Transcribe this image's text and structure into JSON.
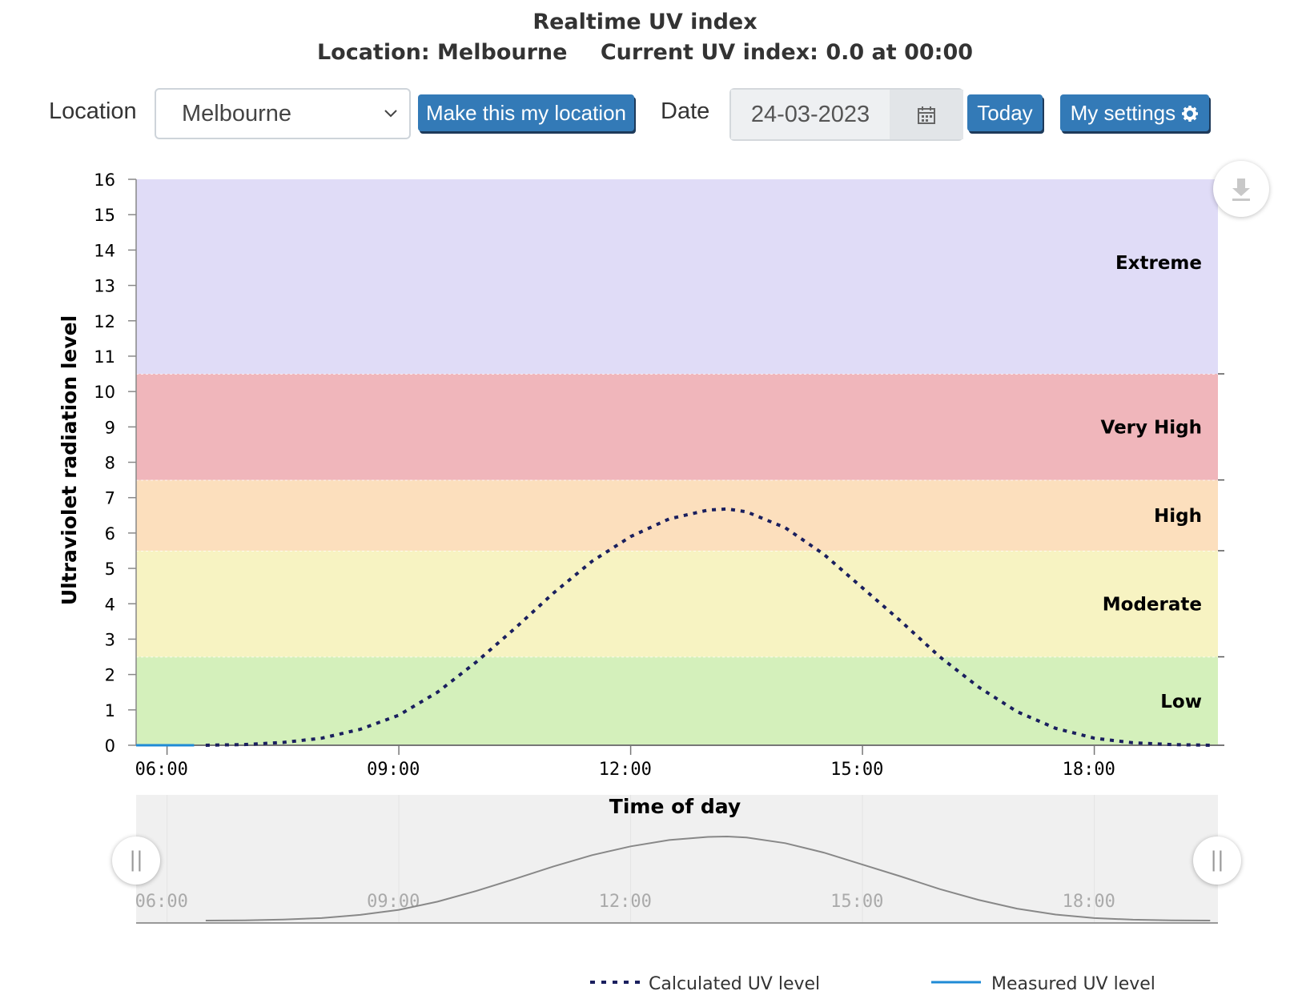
{
  "header": {
    "title": "Realtime UV index",
    "location_text": "Location: Melbourne",
    "current_text": "Current UV index: 0.0 at 00:00"
  },
  "controls": {
    "location_label": "Location",
    "location_value": "Melbourne",
    "make_location_button": "Make this my location",
    "date_label": "Date",
    "date_value": "24-03-2023",
    "today_button": "Today",
    "settings_button": "My settings"
  },
  "icons": {
    "select": "chevron-down-icon",
    "date": "calendar-icon",
    "settings": "gear-icon",
    "export": "download-icon",
    "navigator_handles": "drag-handle-icon"
  },
  "chart_data": {
    "type": "line",
    "title": "",
    "xlabel": "Time of day",
    "ylabel": "Ultraviolet radiation level",
    "x_ticks": [
      "06:00",
      "09:00",
      "12:00",
      "15:00",
      "18:00"
    ],
    "xlim_hours": [
      5.6,
      19.6
    ],
    "ylim": [
      0,
      16
    ],
    "y_ticks": [
      0,
      1,
      2,
      3,
      4,
      5,
      6,
      7,
      8,
      9,
      10,
      11,
      12,
      13,
      14,
      15,
      16
    ],
    "grid": false,
    "legend_position": "bottom-right",
    "bands": [
      {
        "name": "Low",
        "from": 0,
        "to": 2.5,
        "color": "#d4f0bb"
      },
      {
        "name": "Moderate",
        "from": 2.5,
        "to": 5.5,
        "color": "#f7f3c2"
      },
      {
        "name": "High",
        "from": 5.5,
        "to": 7.5,
        "color": "#fcdfbd"
      },
      {
        "name": "Very High",
        "from": 7.5,
        "to": 10.5,
        "color": "#f0b6bb"
      },
      {
        "name": "Extreme",
        "from": 10.5,
        "to": 16,
        "color": "#e0dcf7"
      }
    ],
    "series": [
      {
        "name": "Calculated UV level",
        "color": "#1a1f5e",
        "style": "dotted",
        "x_hours": [
          6.5,
          7.0,
          7.5,
          8.0,
          8.5,
          9.0,
          9.5,
          10.0,
          10.5,
          11.0,
          11.5,
          12.0,
          12.5,
          13.0,
          13.25,
          13.5,
          14.0,
          14.5,
          15.0,
          15.5,
          16.0,
          16.5,
          17.0,
          17.5,
          18.0,
          18.5,
          19.0,
          19.5
        ],
        "values": [
          0.0,
          0.02,
          0.08,
          0.2,
          0.45,
          0.85,
          1.5,
          2.35,
          3.3,
          4.3,
          5.2,
          5.9,
          6.4,
          6.65,
          6.68,
          6.6,
          6.15,
          5.4,
          4.45,
          3.5,
          2.5,
          1.65,
          0.95,
          0.48,
          0.2,
          0.07,
          0.02,
          0.0
        ]
      },
      {
        "name": "Measured UV level",
        "color": "#1f8bd6",
        "style": "solid",
        "x_hours": [
          5.6,
          6.35
        ],
        "values": [
          0.0,
          0.0
        ]
      }
    ]
  }
}
